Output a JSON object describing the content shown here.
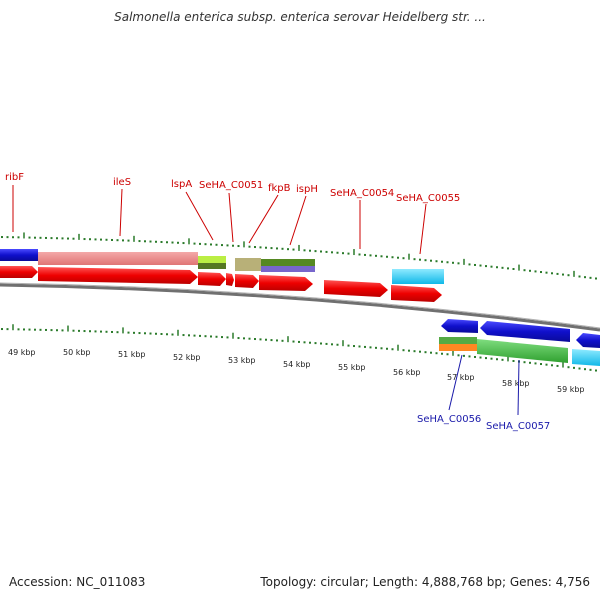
{
  "title": "Salmonella enterica subsp. enterica serovar Heidelberg str. ...",
  "accession": "Accession: NC_011083",
  "topology": "Topology: circular; Length: 4,888,768 bp; Genes: 4,756",
  "colors": {
    "forward_gene": "#ee0000",
    "reverse_gene": "#1010cc",
    "tick": "#2a7a2a",
    "backbone": "#808080",
    "label_top": "#cc0000",
    "label_bottom": "#1a1aaa"
  },
  "kbp_labels": [
    "49 kbp",
    "50 kbp",
    "51 kbp",
    "52 kbp",
    "53 kbp",
    "54 kbp",
    "55 kbp",
    "56 kbp",
    "57 kbp",
    "58 kbp",
    "59 kbp"
  ],
  "genes_top": [
    "ribF",
    "ileS",
    "lspA",
    "SeHA_C0051",
    "fkpB",
    "ispH",
    "SeHA_C0054",
    "SeHA_C0055"
  ],
  "genes_bottom": [
    "SeHA_C0056",
    "SeHA_C0057"
  ]
}
